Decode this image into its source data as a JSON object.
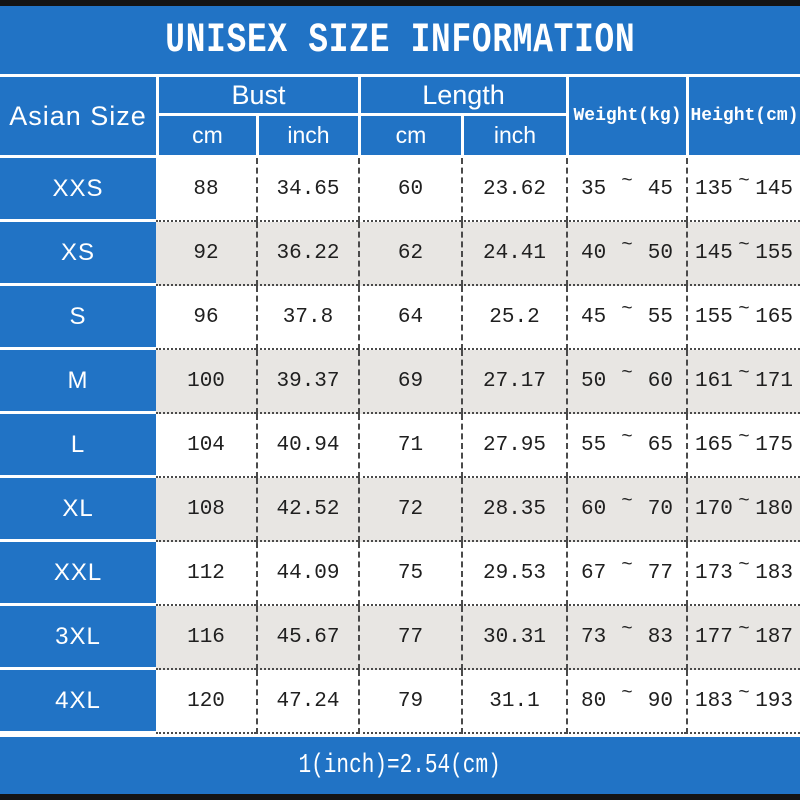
{
  "title": "UNISEX SIZE INFORMATION",
  "footer_note": "1(inch)=2.54(cm)",
  "colors": {
    "header_blue": "#2173c5",
    "row_alt_gray": "#e8e6e3",
    "bar_black": "#141414",
    "text_dark": "#1f1f1f",
    "header_text": "#ffffff"
  },
  "table": {
    "size_col_header": "Asian Size",
    "tilde": "~",
    "groups": [
      {
        "label": "Bust",
        "sub": [
          "cm",
          "inch"
        ]
      },
      {
        "label": "Length",
        "sub": [
          "cm",
          "inch"
        ]
      }
    ],
    "weight_header": "Weight(kg)",
    "height_header": "Height(cm)",
    "rows": [
      {
        "size": "XXS",
        "bust_cm": "88",
        "bust_inch": "34.65",
        "length_cm": "60",
        "length_inch": "23.62",
        "weight_min": "35",
        "weight_max": "45",
        "height_min": "135",
        "height_max": "145"
      },
      {
        "size": "XS",
        "bust_cm": "92",
        "bust_inch": "36.22",
        "length_cm": "62",
        "length_inch": "24.41",
        "weight_min": "40",
        "weight_max": "50",
        "height_min": "145",
        "height_max": "155"
      },
      {
        "size": "S",
        "bust_cm": "96",
        "bust_inch": "37.8",
        "length_cm": "64",
        "length_inch": "25.2",
        "weight_min": "45",
        "weight_max": "55",
        "height_min": "155",
        "height_max": "165"
      },
      {
        "size": "M",
        "bust_cm": "100",
        "bust_inch": "39.37",
        "length_cm": "69",
        "length_inch": "27.17",
        "weight_min": "50",
        "weight_max": "60",
        "height_min": "161",
        "height_max": "171"
      },
      {
        "size": "L",
        "bust_cm": "104",
        "bust_inch": "40.94",
        "length_cm": "71",
        "length_inch": "27.95",
        "weight_min": "55",
        "weight_max": "65",
        "height_min": "165",
        "height_max": "175"
      },
      {
        "size": "XL",
        "bust_cm": "108",
        "bust_inch": "42.52",
        "length_cm": "72",
        "length_inch": "28.35",
        "weight_min": "60",
        "weight_max": "70",
        "height_min": "170",
        "height_max": "180"
      },
      {
        "size": "XXL",
        "bust_cm": "112",
        "bust_inch": "44.09",
        "length_cm": "75",
        "length_inch": "29.53",
        "weight_min": "67",
        "weight_max": "77",
        "height_min": "173",
        "height_max": "183"
      },
      {
        "size": "3XL",
        "bust_cm": "116",
        "bust_inch": "45.67",
        "length_cm": "77",
        "length_inch": "30.31",
        "weight_min": "73",
        "weight_max": "83",
        "height_min": "177",
        "height_max": "187"
      },
      {
        "size": "4XL",
        "bust_cm": "120",
        "bust_inch": "47.24",
        "length_cm": "79",
        "length_inch": "31.1",
        "weight_min": "80",
        "weight_max": "90",
        "height_min": "183",
        "height_max": "193"
      }
    ]
  }
}
